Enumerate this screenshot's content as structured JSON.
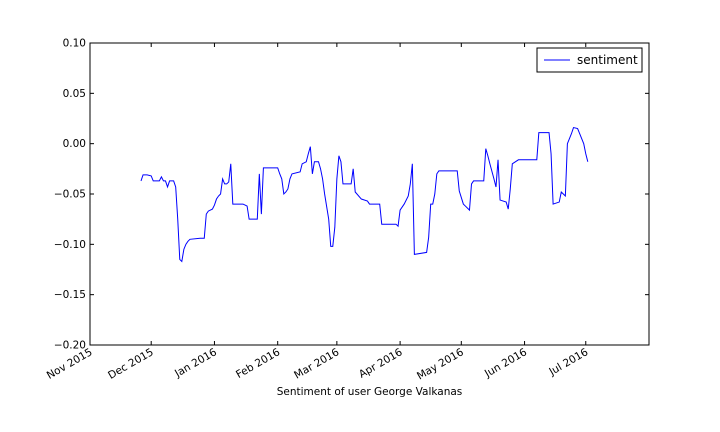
{
  "chart_data": {
    "type": "line",
    "title": "",
    "xlabel": "Sentiment of user George Valkanas",
    "ylabel": "",
    "xlim": [
      "2015-11-01",
      "2016-08-01"
    ],
    "ylim": [
      -0.2,
      0.1
    ],
    "x_tick_labels": [
      "Nov 2015",
      "Dec 2015",
      "Jan 2016",
      "Feb 2016",
      "Mar 2016",
      "Apr 2016",
      "May 2016",
      "Jun 2016",
      "Jul 2016"
    ],
    "y_ticks": [
      -0.2,
      -0.15,
      -0.1,
      -0.05,
      0.0,
      0.05,
      0.1
    ],
    "y_tick_labels": [
      "−0.20",
      "−0.15",
      "−0.10",
      "−0.05",
      "0.00",
      "0.05",
      "0.10"
    ],
    "legend": {
      "position": "upper right",
      "entries": [
        "sentiment"
      ]
    },
    "grid": false,
    "series": [
      {
        "name": "sentiment",
        "color": "#0000ff",
        "points": [
          [
            "2015-11-26",
            -0.037
          ],
          [
            "2015-11-27",
            -0.031
          ],
          [
            "2015-11-29",
            -0.031
          ],
          [
            "2015-12-01",
            -0.032
          ],
          [
            "2015-12-02",
            -0.037
          ],
          [
            "2015-12-05",
            -0.037
          ],
          [
            "2015-12-06",
            -0.033
          ],
          [
            "2015-12-07",
            -0.037
          ],
          [
            "2015-12-08",
            -0.037
          ],
          [
            "2015-12-09",
            -0.043
          ],
          [
            "2015-12-10",
            -0.037
          ],
          [
            "2015-12-12",
            -0.037
          ],
          [
            "2015-12-13",
            -0.043
          ],
          [
            "2015-12-14",
            -0.075
          ],
          [
            "2015-12-15",
            -0.115
          ],
          [
            "2015-12-16",
            -0.117
          ],
          [
            "2015-12-17",
            -0.105
          ],
          [
            "2015-12-18",
            -0.1
          ],
          [
            "2015-12-19",
            -0.097
          ],
          [
            "2015-12-20",
            -0.095
          ],
          [
            "2015-12-25",
            -0.094
          ],
          [
            "2015-12-27",
            -0.094
          ],
          [
            "2015-12-28",
            -0.07
          ],
          [
            "2015-12-29",
            -0.067
          ],
          [
            "2015-12-31",
            -0.065
          ],
          [
            "2016-01-01",
            -0.061
          ],
          [
            "2016-01-02",
            -0.055
          ],
          [
            "2016-01-03",
            -0.052
          ],
          [
            "2016-01-04",
            -0.05
          ],
          [
            "2016-01-05",
            -0.035
          ],
          [
            "2016-01-06",
            -0.04
          ],
          [
            "2016-01-07",
            -0.04
          ],
          [
            "2016-01-08",
            -0.038
          ],
          [
            "2016-01-09",
            -0.02
          ],
          [
            "2016-01-10",
            -0.06
          ],
          [
            "2016-01-14",
            -0.06
          ],
          [
            "2016-01-15",
            -0.06
          ],
          [
            "2016-01-16",
            -0.061
          ],
          [
            "2016-01-17",
            -0.062
          ],
          [
            "2016-01-18",
            -0.075
          ],
          [
            "2016-01-22",
            -0.075
          ],
          [
            "2016-01-23",
            -0.03
          ],
          [
            "2016-01-24",
            -0.07
          ],
          [
            "2016-01-25",
            -0.024
          ],
          [
            "2016-01-31",
            -0.024
          ],
          [
            "2016-02-01",
            -0.024
          ],
          [
            "2016-02-02",
            -0.03
          ],
          [
            "2016-02-03",
            -0.035
          ],
          [
            "2016-02-04",
            -0.05
          ],
          [
            "2016-02-05",
            -0.048
          ],
          [
            "2016-02-06",
            -0.045
          ],
          [
            "2016-02-07",
            -0.035
          ],
          [
            "2016-02-08",
            -0.03
          ],
          [
            "2016-02-12",
            -0.028
          ],
          [
            "2016-02-13",
            -0.02
          ],
          [
            "2016-02-15",
            -0.018
          ],
          [
            "2016-02-16",
            -0.01
          ],
          [
            "2016-02-17",
            -0.003
          ],
          [
            "2016-02-18",
            -0.03
          ],
          [
            "2016-02-19",
            -0.018
          ],
          [
            "2016-02-21",
            -0.018
          ],
          [
            "2016-02-22",
            -0.025
          ],
          [
            "2016-02-23",
            -0.035
          ],
          [
            "2016-02-24",
            -0.05
          ],
          [
            "2016-02-26",
            -0.075
          ],
          [
            "2016-02-27",
            -0.102
          ],
          [
            "2016-02-28",
            -0.102
          ],
          [
            "2016-02-29",
            -0.083
          ],
          [
            "2016-03-01",
            -0.035
          ],
          [
            "2016-03-02",
            -0.012
          ],
          [
            "2016-03-03",
            -0.018
          ],
          [
            "2016-03-04",
            -0.04
          ],
          [
            "2016-03-08",
            -0.04
          ],
          [
            "2016-03-09",
            -0.025
          ],
          [
            "2016-03-10",
            -0.048
          ],
          [
            "2016-03-13",
            -0.055
          ],
          [
            "2016-03-16",
            -0.057
          ],
          [
            "2016-03-17",
            -0.06
          ],
          [
            "2016-03-22",
            -0.06
          ],
          [
            "2016-03-23",
            -0.08
          ],
          [
            "2016-03-30",
            -0.08
          ],
          [
            "2016-03-31",
            -0.082
          ],
          [
            "2016-04-01",
            -0.066
          ],
          [
            "2016-04-03",
            -0.06
          ],
          [
            "2016-04-05",
            -0.052
          ],
          [
            "2016-04-06",
            -0.04
          ],
          [
            "2016-04-07",
            -0.02
          ],
          [
            "2016-04-08",
            -0.11
          ],
          [
            "2016-04-14",
            -0.108
          ],
          [
            "2016-04-15",
            -0.093
          ],
          [
            "2016-04-16",
            -0.06
          ],
          [
            "2016-04-17",
            -0.06
          ],
          [
            "2016-04-18",
            -0.05
          ],
          [
            "2016-04-19",
            -0.03
          ],
          [
            "2016-04-20",
            -0.027
          ],
          [
            "2016-04-29",
            -0.027
          ],
          [
            "2016-04-30",
            -0.047
          ],
          [
            "2016-05-02",
            -0.06
          ],
          [
            "2016-05-03",
            -0.062
          ],
          [
            "2016-05-05",
            -0.066
          ],
          [
            "2016-05-06",
            -0.04
          ],
          [
            "2016-05-07",
            -0.037
          ],
          [
            "2016-05-12",
            -0.037
          ],
          [
            "2016-05-13",
            -0.005
          ],
          [
            "2016-05-14",
            -0.012
          ],
          [
            "2016-05-15",
            -0.02
          ],
          [
            "2016-05-17",
            -0.035
          ],
          [
            "2016-05-18",
            -0.043
          ],
          [
            "2016-05-19",
            -0.016
          ],
          [
            "2016-05-20",
            -0.056
          ],
          [
            "2016-05-23",
            -0.058
          ],
          [
            "2016-05-24",
            -0.065
          ],
          [
            "2016-05-25",
            -0.045
          ],
          [
            "2016-05-26",
            -0.02
          ],
          [
            "2016-05-29",
            -0.016
          ],
          [
            "2016-06-07",
            -0.016
          ],
          [
            "2016-06-08",
            0.011
          ],
          [
            "2016-06-13",
            0.011
          ],
          [
            "2016-06-14",
            -0.01
          ],
          [
            "2016-06-15",
            -0.06
          ],
          [
            "2016-06-18",
            -0.058
          ],
          [
            "2016-06-19",
            -0.048
          ],
          [
            "2016-06-20",
            -0.05
          ],
          [
            "2016-06-21",
            -0.052
          ],
          [
            "2016-06-22",
            0.0
          ],
          [
            "2016-06-24",
            0.01
          ],
          [
            "2016-06-25",
            0.016
          ],
          [
            "2016-06-27",
            0.015
          ],
          [
            "2016-06-28",
            0.01
          ],
          [
            "2016-06-30",
            0.0
          ],
          [
            "2016-07-01",
            -0.01
          ],
          [
            "2016-07-02",
            -0.018
          ]
        ]
      }
    ]
  }
}
